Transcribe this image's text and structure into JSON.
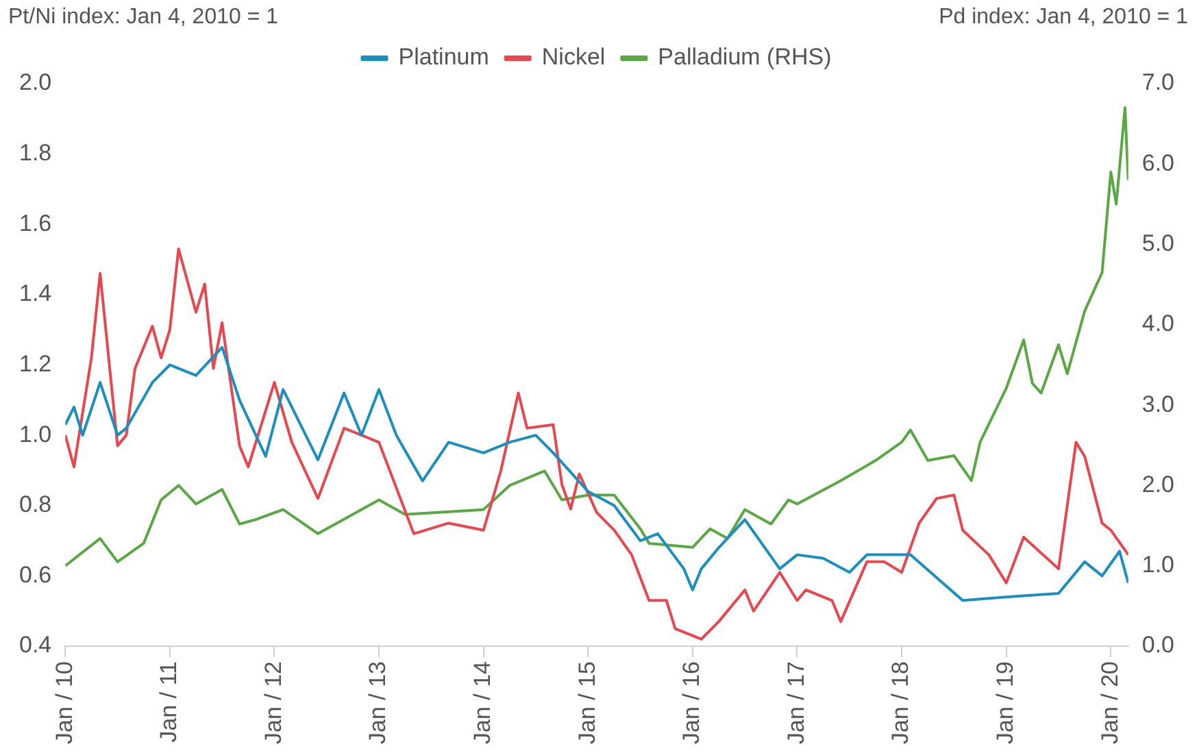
{
  "chart_data": {
    "type": "line",
    "ylabel": "Pt/Ni index: Jan 4, 2010 = 1",
    "y2label": "Pd index: Jan 4, 2010 = 1",
    "legend": "top",
    "grid": false,
    "xlim": [
      "2010-01",
      "2020-03"
    ],
    "xticks": [
      {
        "value": "2010-01",
        "label": "Jan / 10"
      },
      {
        "value": "2011-01",
        "label": "Jan / 11"
      },
      {
        "value": "2012-01",
        "label": "Jan / 12"
      },
      {
        "value": "2013-01",
        "label": "Jan / 13"
      },
      {
        "value": "2014-01",
        "label": "Jan / 14"
      },
      {
        "value": "2015-01",
        "label": "Jan / 15"
      },
      {
        "value": "2016-01",
        "label": "Jan / 16"
      },
      {
        "value": "2017-01",
        "label": "Jan / 17"
      },
      {
        "value": "2018-01",
        "label": "Jan / 18"
      },
      {
        "value": "2019-01",
        "label": "Jan / 19"
      },
      {
        "value": "2020-01",
        "label": "Jan / 20"
      }
    ],
    "ylim": [
      0.4,
      2.0
    ],
    "yticks": [
      {
        "value": 0.4,
        "label": "0.4"
      },
      {
        "value": 0.6,
        "label": "0.6"
      },
      {
        "value": 0.8,
        "label": "0.8"
      },
      {
        "value": 1.0,
        "label": "1.0"
      },
      {
        "value": 1.2,
        "label": "1.2"
      },
      {
        "value": 1.4,
        "label": "1.4"
      },
      {
        "value": 1.6,
        "label": "1.6"
      },
      {
        "value": 1.8,
        "label": "1.8"
      },
      {
        "value": 2.0,
        "label": "2.0"
      }
    ],
    "y2lim": [
      0,
      7
    ],
    "y2ticks": [
      {
        "value": 0,
        "label": "0.0"
      },
      {
        "value": 1,
        "label": "1.0"
      },
      {
        "value": 2,
        "label": "2.0"
      },
      {
        "value": 3,
        "label": "3.0"
      },
      {
        "value": 4,
        "label": "4.0"
      },
      {
        "value": 5,
        "label": "5.0"
      },
      {
        "value": 6,
        "label": "6.0"
      },
      {
        "value": 7,
        "label": "7.0"
      }
    ],
    "series": [
      {
        "name": "Platinum",
        "color": "#1a8fc0",
        "x": [
          "2010-01",
          "2010-02",
          "2010-03",
          "2010-05",
          "2010-07",
          "2010-08",
          "2010-11",
          "2011-01",
          "2011-04",
          "2011-07",
          "2011-09",
          "2011-12",
          "2012-02",
          "2012-06",
          "2012-09",
          "2012-11",
          "2013-01",
          "2013-03",
          "2013-06",
          "2013-09",
          "2014-01",
          "2014-04",
          "2014-07",
          "2014-09",
          "2015-01",
          "2015-04",
          "2015-07",
          "2015-09",
          "2015-12",
          "2016-01",
          "2016-02",
          "2016-04",
          "2016-07",
          "2016-11",
          "2017-01",
          "2017-04",
          "2017-07",
          "2017-09",
          "2018-02",
          "2018-08",
          "2019-01",
          "2019-07",
          "2019-10",
          "2019-12",
          "2020-02",
          "2020-03"
        ],
        "values": [
          1.03,
          1.08,
          1.0,
          1.15,
          1.0,
          1.02,
          1.15,
          1.2,
          1.17,
          1.25,
          1.1,
          0.94,
          1.13,
          0.93,
          1.12,
          1.0,
          1.13,
          1.0,
          0.87,
          0.98,
          0.95,
          0.98,
          1.0,
          0.95,
          0.84,
          0.8,
          0.7,
          0.72,
          0.62,
          0.56,
          0.62,
          0.68,
          0.76,
          0.62,
          0.66,
          0.65,
          0.61,
          0.66,
          0.66,
          0.53,
          0.54,
          0.55,
          0.64,
          0.6,
          0.67,
          0.58
        ]
      },
      {
        "name": "Nickel",
        "color": "#e8474f",
        "x": [
          "2010-01",
          "2010-02",
          "2010-04",
          "2010-05",
          "2010-07",
          "2010-08",
          "2010-09",
          "2010-11",
          "2010-12",
          "2011-01",
          "2011-02",
          "2011-04",
          "2011-05",
          "2011-06",
          "2011-07",
          "2011-09",
          "2011-10",
          "2012-01",
          "2012-03",
          "2012-06",
          "2012-09",
          "2013-01",
          "2013-05",
          "2013-09",
          "2014-01",
          "2014-03",
          "2014-05",
          "2014-06",
          "2014-09",
          "2014-10",
          "2014-11",
          "2014-12",
          "2015-02",
          "2015-04",
          "2015-06",
          "2015-08",
          "2015-10",
          "2015-11",
          "2016-02",
          "2016-04",
          "2016-07",
          "2016-08",
          "2016-11",
          "2017-01",
          "2017-02",
          "2017-05",
          "2017-06",
          "2017-09",
          "2017-11",
          "2018-01",
          "2018-03",
          "2018-05",
          "2018-07",
          "2018-08",
          "2018-11",
          "2019-01",
          "2019-03",
          "2019-07",
          "2019-09",
          "2019-10",
          "2019-12",
          "2020-01",
          "2020-03"
        ],
        "values": [
          1.0,
          0.91,
          1.22,
          1.46,
          0.97,
          1.0,
          1.19,
          1.31,
          1.22,
          1.3,
          1.53,
          1.35,
          1.43,
          1.19,
          1.32,
          0.97,
          0.91,
          1.15,
          0.98,
          0.82,
          1.02,
          0.98,
          0.72,
          0.75,
          0.73,
          0.9,
          1.12,
          1.02,
          1.03,
          0.86,
          0.79,
          0.89,
          0.78,
          0.73,
          0.66,
          0.53,
          0.53,
          0.45,
          0.42,
          0.47,
          0.56,
          0.5,
          0.61,
          0.53,
          0.56,
          0.53,
          0.47,
          0.64,
          0.64,
          0.61,
          0.75,
          0.82,
          0.83,
          0.73,
          0.66,
          0.58,
          0.71,
          0.62,
          0.98,
          0.94,
          0.75,
          0.73,
          0.66
        ]
      },
      {
        "name": "Palladium (RHS)",
        "color": "#5aa844",
        "axis": "y2",
        "x": [
          "2010-01",
          "2010-05",
          "2010-07",
          "2010-10",
          "2010-12",
          "2011-02",
          "2011-04",
          "2011-07",
          "2011-09",
          "2011-11",
          "2012-02",
          "2012-06",
          "2012-09",
          "2013-01",
          "2013-04",
          "2014-01",
          "2014-04",
          "2014-08",
          "2014-10",
          "2015-01",
          "2015-04",
          "2015-07",
          "2015-08",
          "2016-01",
          "2016-03",
          "2016-05",
          "2016-07",
          "2016-10",
          "2016-12",
          "2017-01",
          "2017-06",
          "2017-10",
          "2018-01",
          "2018-02",
          "2018-04",
          "2018-07",
          "2018-09",
          "2018-10",
          "2019-01",
          "2019-03",
          "2019-04",
          "2019-05",
          "2019-07",
          "2019-08",
          "2019-10",
          "2019-12",
          "2020-01",
          "2020-01-20",
          "2020-02-20",
          "2020-03"
        ],
        "values": [
          1.0,
          1.34,
          1.05,
          1.28,
          1.82,
          2.0,
          1.77,
          1.95,
          1.52,
          1.58,
          1.7,
          1.4,
          1.58,
          1.82,
          1.64,
          1.7,
          2.0,
          2.18,
          1.82,
          1.88,
          1.88,
          1.46,
          1.28,
          1.23,
          1.46,
          1.34,
          1.7,
          1.52,
          1.82,
          1.77,
          2.06,
          2.31,
          2.54,
          2.69,
          2.31,
          2.37,
          2.06,
          2.54,
          3.21,
          3.81,
          3.27,
          3.15,
          3.75,
          3.39,
          4.17,
          4.65,
          5.9,
          5.5,
          6.7,
          5.8
        ]
      }
    ]
  }
}
